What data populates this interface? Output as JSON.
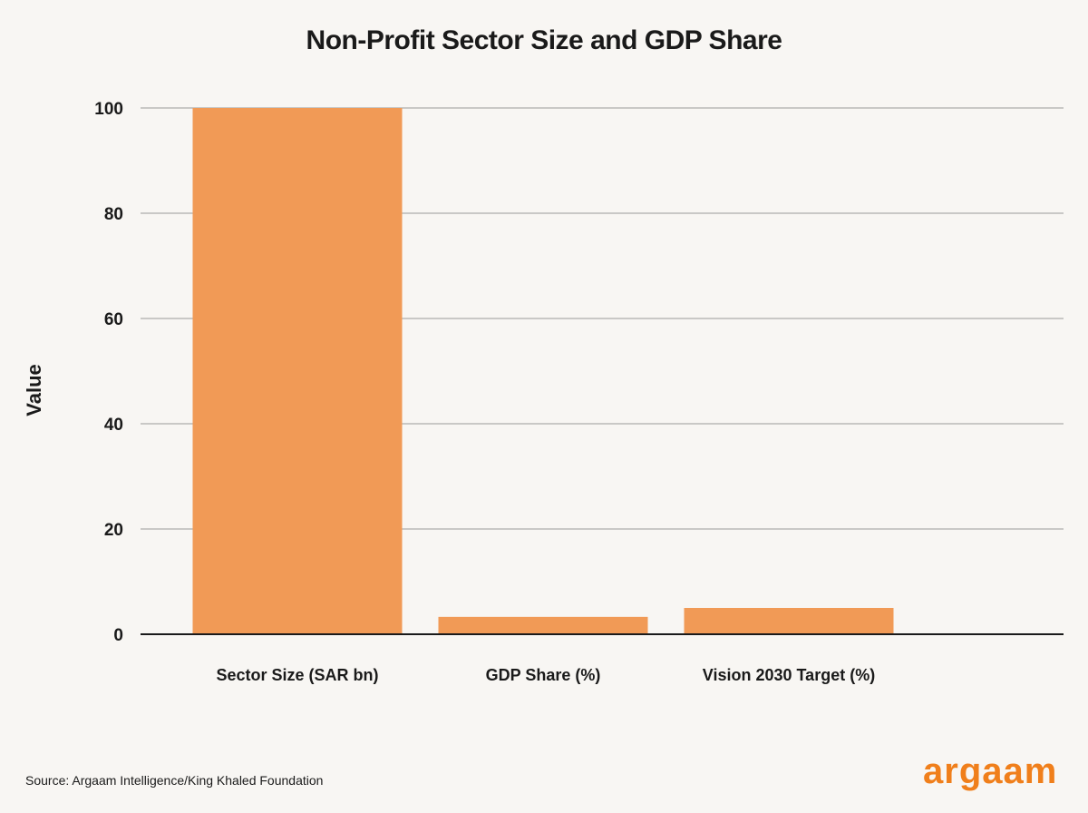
{
  "chart_data": {
    "type": "bar",
    "title": "Non-Profit Sector Size and GDP Share",
    "xlabel": "",
    "ylabel": "Value",
    "categories": [
      "Sector Size (SAR bn)",
      "GDP Share (%)",
      "Vision 2030 Target (%)"
    ],
    "values": [
      100,
      3.3,
      5
    ],
    "ylim": [
      0,
      100
    ],
    "yticks": [
      0,
      20,
      40,
      60,
      80,
      100
    ],
    "grid": true,
    "bar_color": "#f19a56"
  },
  "source": "Source: Argaam Intelligence/King Khaled Foundation",
  "logo": "argaam"
}
